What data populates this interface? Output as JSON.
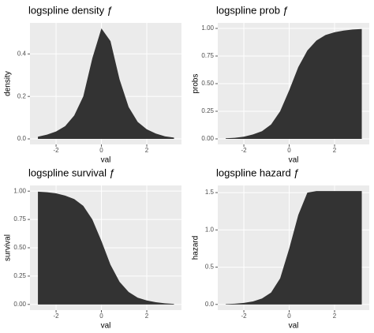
{
  "chart_data": [
    {
      "type": "area",
      "title": "logspline density ƒ",
      "xlabel": "val",
      "ylabel": "density",
      "color": "#333333",
      "grid": true,
      "x": [
        -2.8,
        -2.4,
        -2.0,
        -1.6,
        -1.2,
        -0.8,
        -0.4,
        0.0,
        0.4,
        0.8,
        1.2,
        1.6,
        2.0,
        2.4,
        2.8,
        3.2
      ],
      "values": [
        0.01,
        0.02,
        0.035,
        0.06,
        0.11,
        0.2,
        0.38,
        0.52,
        0.46,
        0.28,
        0.15,
        0.08,
        0.045,
        0.025,
        0.012,
        0.006
      ],
      "xlim": [
        -3.15,
        3.53
      ],
      "xticks": [
        -2,
        0,
        2
      ],
      "ylim": [
        -0.026,
        0.546
      ],
      "yticks": [
        {
          "value": 0,
          "label": "0.0"
        },
        {
          "value": 0.2,
          "label": "0.2"
        },
        {
          "value": 0.4,
          "label": "0.4"
        }
      ]
    },
    {
      "type": "area",
      "title": "logspline prob ƒ",
      "xlabel": "val",
      "ylabel": "probs",
      "color": "#333333",
      "grid": true,
      "x": [
        -2.8,
        -2.4,
        -2.0,
        -1.6,
        -1.2,
        -0.8,
        -0.4,
        0.0,
        0.4,
        0.8,
        1.2,
        1.6,
        2.0,
        2.4,
        2.8,
        3.2
      ],
      "values": [
        0.005,
        0.01,
        0.02,
        0.04,
        0.07,
        0.13,
        0.25,
        0.44,
        0.65,
        0.8,
        0.89,
        0.94,
        0.965,
        0.98,
        0.99,
        0.995
      ],
      "xlim": [
        -3.15,
        3.53
      ],
      "xticks": [
        -2,
        0,
        2
      ],
      "ylim": [
        -0.05,
        1.05
      ],
      "yticks": [
        {
          "value": 0,
          "label": "0.00"
        },
        {
          "value": 0.25,
          "label": "0.25"
        },
        {
          "value": 0.5,
          "label": "0.50"
        },
        {
          "value": 0.75,
          "label": "0.75"
        },
        {
          "value": 1,
          "label": "1.00"
        }
      ]
    },
    {
      "type": "area",
      "title": "logspline survival ƒ",
      "xlabel": "val",
      "ylabel": "survival",
      "color": "#333333",
      "grid": true,
      "x": [
        -2.8,
        -2.4,
        -2.0,
        -1.6,
        -1.2,
        -0.8,
        -0.4,
        0.0,
        0.4,
        0.8,
        1.2,
        1.6,
        2.0,
        2.4,
        2.8,
        3.2
      ],
      "values": [
        0.995,
        0.99,
        0.98,
        0.96,
        0.93,
        0.87,
        0.75,
        0.56,
        0.35,
        0.2,
        0.11,
        0.06,
        0.035,
        0.02,
        0.01,
        0.005
      ],
      "xlim": [
        -3.15,
        3.53
      ],
      "xticks": [
        -2,
        0,
        2
      ],
      "ylim": [
        -0.05,
        1.05
      ],
      "yticks": [
        {
          "value": 0,
          "label": "0.00"
        },
        {
          "value": 0.25,
          "label": "0.25"
        },
        {
          "value": 0.5,
          "label": "0.50"
        },
        {
          "value": 0.75,
          "label": "0.75"
        },
        {
          "value": 1,
          "label": "1.00"
        }
      ]
    },
    {
      "type": "area",
      "title": "logspline hazard ƒ",
      "xlabel": "val",
      "ylabel": "hazard",
      "color": "#333333",
      "grid": true,
      "x": [
        -2.8,
        -2.4,
        -2.0,
        -1.6,
        -1.2,
        -0.8,
        -0.4,
        0.0,
        0.4,
        0.8,
        1.2,
        1.6,
        2.0,
        2.4,
        2.8,
        3.2
      ],
      "values": [
        0.005,
        0.01,
        0.02,
        0.04,
        0.08,
        0.16,
        0.35,
        0.75,
        1.2,
        1.5,
        1.52,
        1.52,
        1.52,
        1.52,
        1.52,
        1.52
      ],
      "xlim": [
        -3.15,
        3.53
      ],
      "xticks": [
        -2,
        0,
        2
      ],
      "ylim": [
        -0.076,
        1.596
      ],
      "yticks": [
        {
          "value": 0,
          "label": "0.0"
        },
        {
          "value": 0.5,
          "label": "0.5"
        },
        {
          "value": 1,
          "label": "1.0"
        },
        {
          "value": 1.5,
          "label": "1.5"
        }
      ]
    }
  ]
}
